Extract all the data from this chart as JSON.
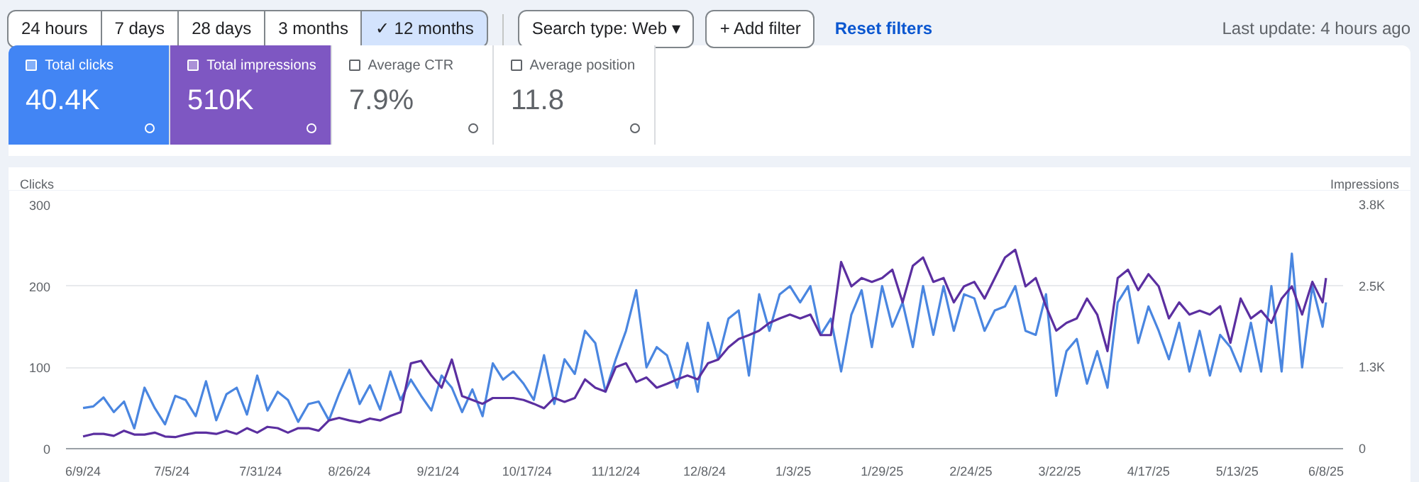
{
  "chart_data": [
    {
      "type": "other",
      "annotations": [
        "24 hours",
        "7 days",
        "28 days",
        "3 months",
        "✓ 12 months",
        "Search type: Web ▾",
        "+ Add filter",
        "Reset filters",
        "Last update: 4 hours ago",
        "Total clicks",
        "40.4K",
        "Total impressions",
        "510K",
        "Average CTR",
        "7.9%",
        "Average position",
        "11.8"
      ]
    },
    {
      "type": "line",
      "ylabel": "Clicks",
      "y2label": "Impressions",
      "x": [
        "2024-06-09",
        "2024-06-12",
        "2024-06-15",
        "2024-06-18",
        "2024-06-21",
        "2024-06-24",
        "2024-06-27",
        "2024-06-30",
        "2024-07-03",
        "2024-07-06",
        "2024-07-09",
        "2024-07-12",
        "2024-07-15",
        "2024-07-18",
        "2024-07-21",
        "2024-07-24",
        "2024-07-27",
        "2024-07-30",
        "2024-08-02",
        "2024-08-05",
        "2024-08-08",
        "2024-08-11",
        "2024-08-14",
        "2024-08-17",
        "2024-08-20",
        "2024-08-23",
        "2024-08-26",
        "2024-08-29",
        "2024-09-01",
        "2024-09-04",
        "2024-09-07",
        "2024-09-10",
        "2024-09-13",
        "2024-09-16",
        "2024-09-19",
        "2024-09-22",
        "2024-09-25",
        "2024-09-28",
        "2024-10-01",
        "2024-10-04",
        "2024-10-07",
        "2024-10-10",
        "2024-10-13",
        "2024-10-16",
        "2024-10-19",
        "2024-10-22",
        "2024-10-25",
        "2024-10-28",
        "2024-10-31",
        "2024-11-03",
        "2024-11-06",
        "2024-11-09",
        "2024-11-12",
        "2024-11-15",
        "2024-11-18",
        "2024-11-21",
        "2024-11-24",
        "2024-11-27",
        "2024-11-30",
        "2024-12-03",
        "2024-12-06",
        "2024-12-09",
        "2024-12-12",
        "2024-12-15",
        "2024-12-18",
        "2024-12-21",
        "2024-12-24",
        "2024-12-27",
        "2024-12-30",
        "2025-01-02",
        "2025-01-05",
        "2025-01-08",
        "2025-01-11",
        "2025-01-14",
        "2025-01-17",
        "2025-01-20",
        "2025-01-23",
        "2025-01-26",
        "2025-01-29",
        "2025-02-01",
        "2025-02-04",
        "2025-02-07",
        "2025-02-10",
        "2025-02-13",
        "2025-02-16",
        "2025-02-19",
        "2025-02-22",
        "2025-02-25",
        "2025-02-28",
        "2025-03-03",
        "2025-03-06",
        "2025-03-09",
        "2025-03-12",
        "2025-03-15",
        "2025-03-18",
        "2025-03-21",
        "2025-03-24",
        "2025-03-27",
        "2025-03-30",
        "2025-04-02",
        "2025-04-05",
        "2025-04-08",
        "2025-04-11",
        "2025-04-14",
        "2025-04-17",
        "2025-04-20",
        "2025-04-23",
        "2025-04-26",
        "2025-04-29",
        "2025-05-02",
        "2025-05-05",
        "2025-05-08",
        "2025-05-11",
        "2025-05-14",
        "2025-05-17",
        "2025-05-20",
        "2025-05-23",
        "2025-05-26",
        "2025-05-29",
        "2025-06-01",
        "2025-06-04",
        "2025-06-07",
        "2025-06-08"
      ],
      "series": [
        {
          "color": "#4a86e0",
          "values": [
            50,
            52,
            63,
            45,
            58,
            25,
            75,
            50,
            30,
            65,
            60,
            40,
            83,
            35,
            67,
            75,
            42,
            90,
            47,
            70,
            60,
            33,
            55,
            58,
            35,
            68,
            97,
            55,
            78,
            48,
            95,
            60,
            85,
            65,
            47,
            90,
            75,
            45,
            73,
            40,
            105,
            85,
            95,
            80,
            60,
            115,
            55,
            110,
            92,
            145,
            130,
            70,
            110,
            145,
            195,
            100,
            125,
            115,
            75,
            130,
            70,
            155,
            110,
            160,
            170,
            90,
            190,
            145,
            190,
            200,
            180,
            200,
            140,
            160,
            95,
            165,
            195,
            125,
            200,
            150,
            180,
            125,
            200,
            140,
            200,
            145,
            190,
            185,
            145,
            170,
            175,
            200,
            145,
            140,
            190,
            65,
            120,
            135,
            80,
            120,
            75,
            180,
            200,
            130,
            175,
            145,
            110,
            155,
            95,
            145,
            90,
            140,
            125,
            95,
            155,
            95,
            200,
            95,
            240,
            100,
            200,
            150,
            180
          ]
        },
        {
          "color": "#5b2fa0",
          "axis": "y2",
          "values": [
            190,
            230,
            230,
            200,
            280,
            220,
            220,
            250,
            190,
            180,
            220,
            250,
            250,
            230,
            280,
            230,
            320,
            250,
            340,
            320,
            250,
            320,
            320,
            280,
            440,
            480,
            440,
            410,
            470,
            440,
            510,
            570,
            1330,
            1370,
            1140,
            950,
            1390,
            820,
            760,
            700,
            790,
            790,
            790,
            760,
            700,
            630,
            790,
            730,
            790,
            1080,
            950,
            890,
            1270,
            1330,
            1040,
            1110,
            950,
            1010,
            1080,
            1140,
            1080,
            1330,
            1390,
            1580,
            1710,
            1770,
            1840,
            1960,
            2030,
            2090,
            2030,
            2090,
            1770,
            1770,
            2910,
            2530,
            2660,
            2600,
            2660,
            2790,
            2280,
            2850,
            2980,
            2600,
            2660,
            2280,
            2530,
            2600,
            2340,
            2660,
            2980,
            3100,
            2530,
            2660,
            2220,
            1840,
            1960,
            2030,
            2340,
            2090,
            1520,
            2660,
            2790,
            2470,
            2720,
            2530,
            2030,
            2280,
            2090,
            2150,
            2090,
            2220,
            1650,
            2340,
            2030,
            2150,
            1960,
            2340,
            2530,
            2090,
            2600,
            2280,
            2660
          ]
        }
      ],
      "xlim": [
        "2024-06-04",
        "2025-06-13"
      ],
      "xticks": [
        {
          "value": "2024-06-09",
          "label": "6/9/24"
        },
        {
          "value": "2024-07-05",
          "label": "7/5/24"
        },
        {
          "value": "2024-07-31",
          "label": "7/31/24"
        },
        {
          "value": "2024-08-26",
          "label": "8/26/24"
        },
        {
          "value": "2024-09-21",
          "label": "9/21/24"
        },
        {
          "value": "2024-10-17",
          "label": "10/17/24"
        },
        {
          "value": "2024-11-12",
          "label": "11/12/24"
        },
        {
          "value": "2024-12-08",
          "label": "12/8/24"
        },
        {
          "value": "2025-01-03",
          "label": "1/3/25"
        },
        {
          "value": "2025-01-29",
          "label": "1/29/25"
        },
        {
          "value": "2025-02-24",
          "label": "2/24/25"
        },
        {
          "value": "2025-03-22",
          "label": "3/22/25"
        },
        {
          "value": "2025-04-17",
          "label": "4/17/25"
        },
        {
          "value": "2025-05-13",
          "label": "5/13/25"
        },
        {
          "value": "2025-06-08",
          "label": "6/8/25"
        }
      ],
      "ylim": [
        0,
        300
      ],
      "yticks": [
        0,
        100,
        200,
        300
      ],
      "y2lim": [
        0,
        3800
      ],
      "y2ticks": [
        0,
        {
          "value": 1266.7,
          "label": "1.3K"
        },
        {
          "value": 2533.3,
          "label": "2.5K"
        },
        {
          "value": 3800,
          "label": "3.8K"
        }
      ],
      "grid": "y",
      "marker": "none",
      "line_style": "solid"
    }
  ]
}
